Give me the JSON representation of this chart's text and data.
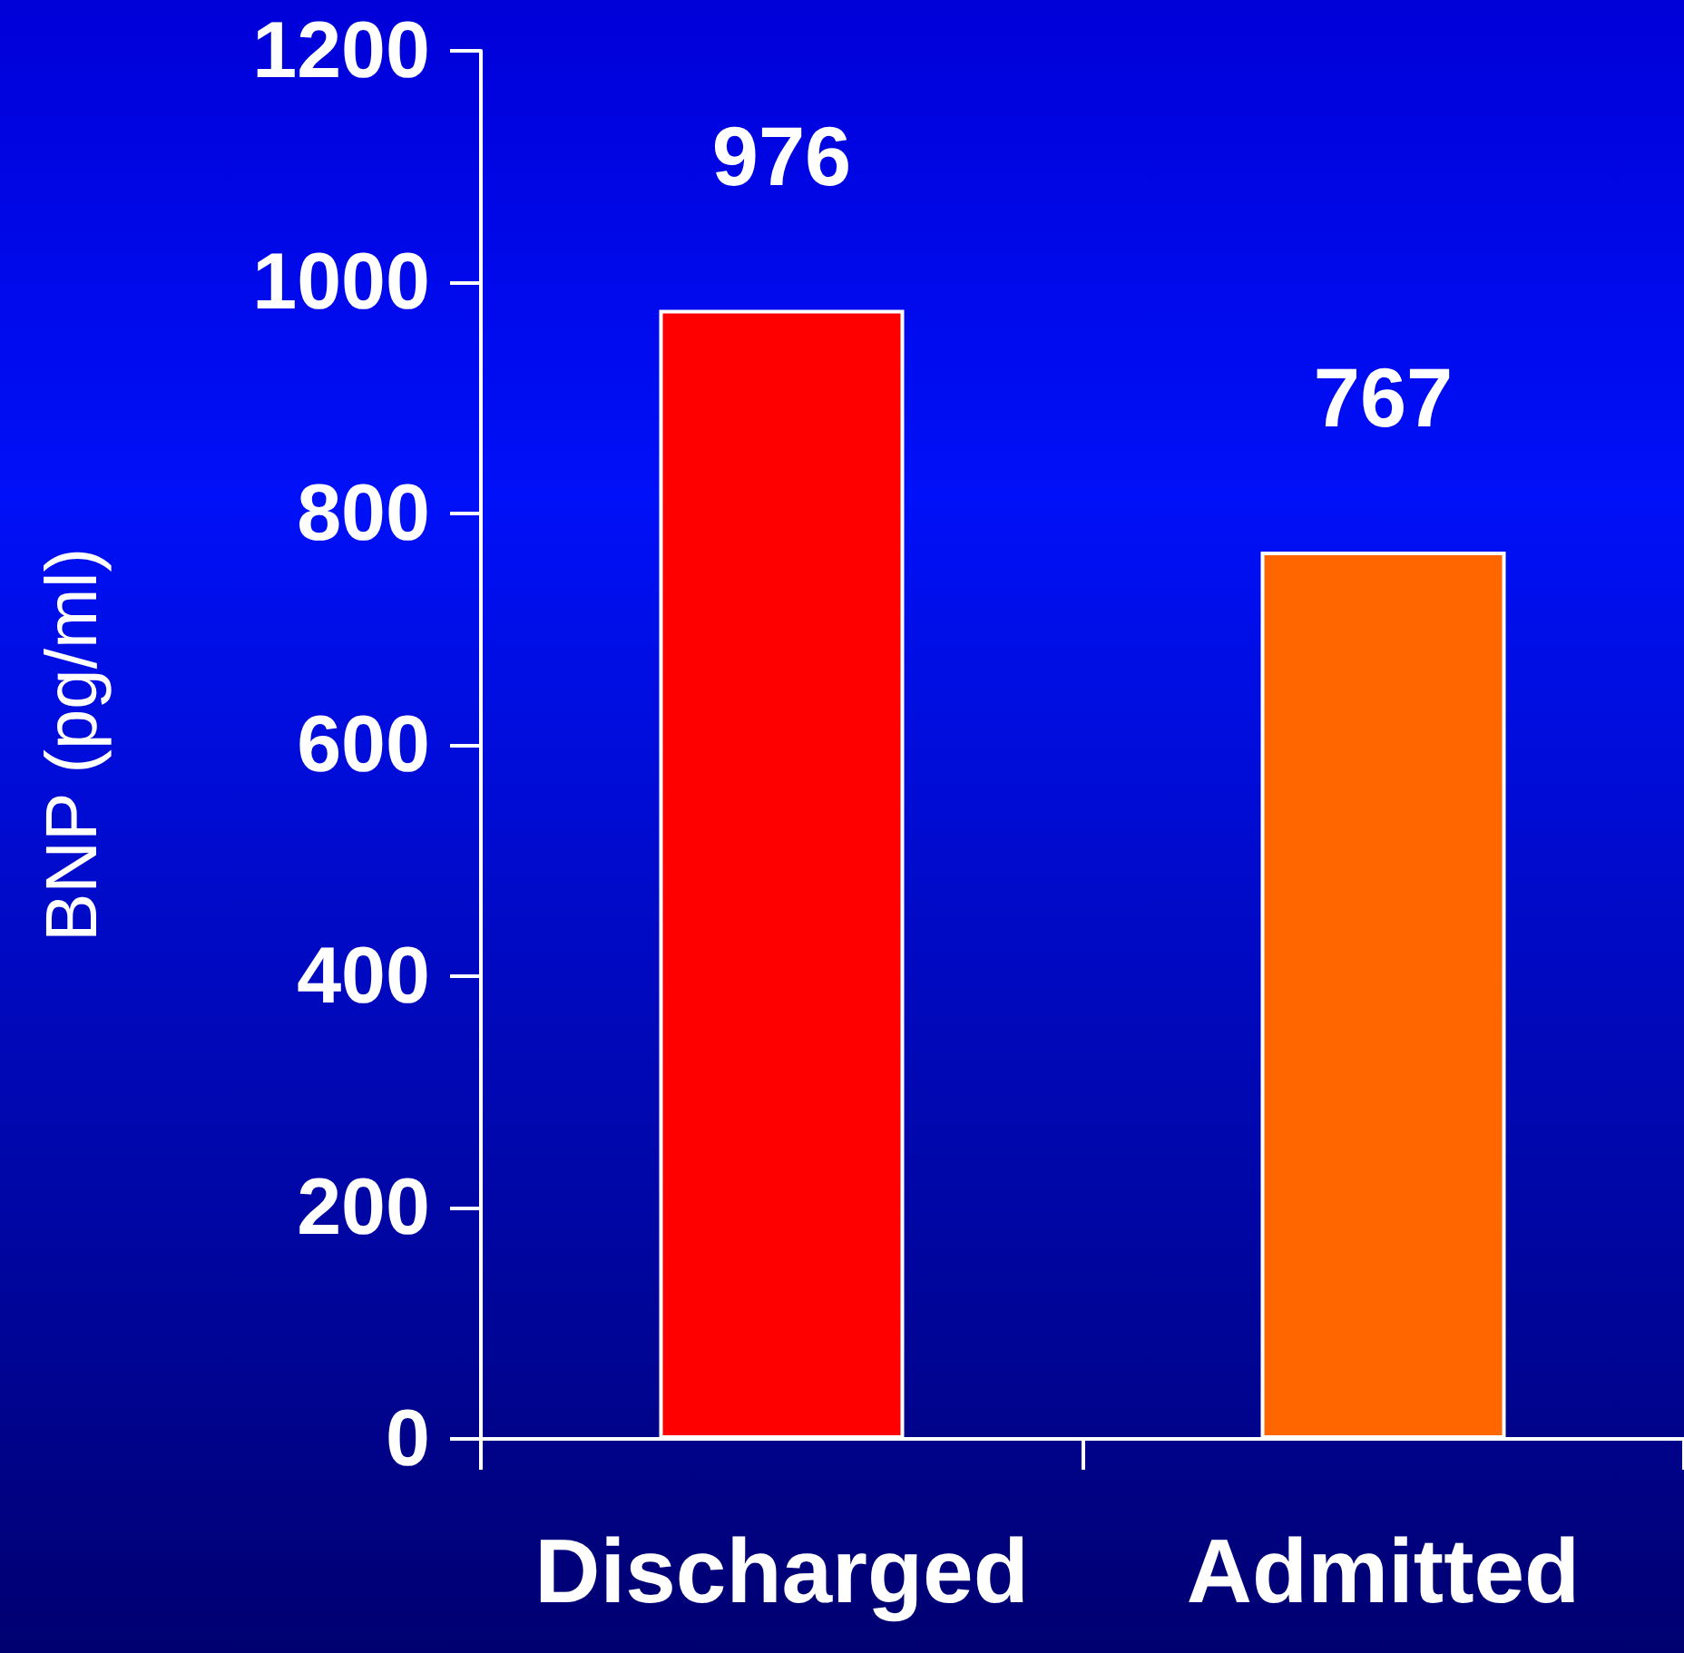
{
  "chart_data": {
    "type": "bar",
    "ylabel": "BNP (pg/ml)",
    "categories": [
      "Discharged",
      "Admitted"
    ],
    "values": [
      976,
      767
    ],
    "colors": [
      "#ff0000",
      "#ff6600"
    ],
    "ylim": [
      0,
      1200
    ],
    "yticks": [
      0,
      200,
      400,
      600,
      800,
      1000,
      1200
    ],
    "data_labels": true,
    "grid": false
  }
}
